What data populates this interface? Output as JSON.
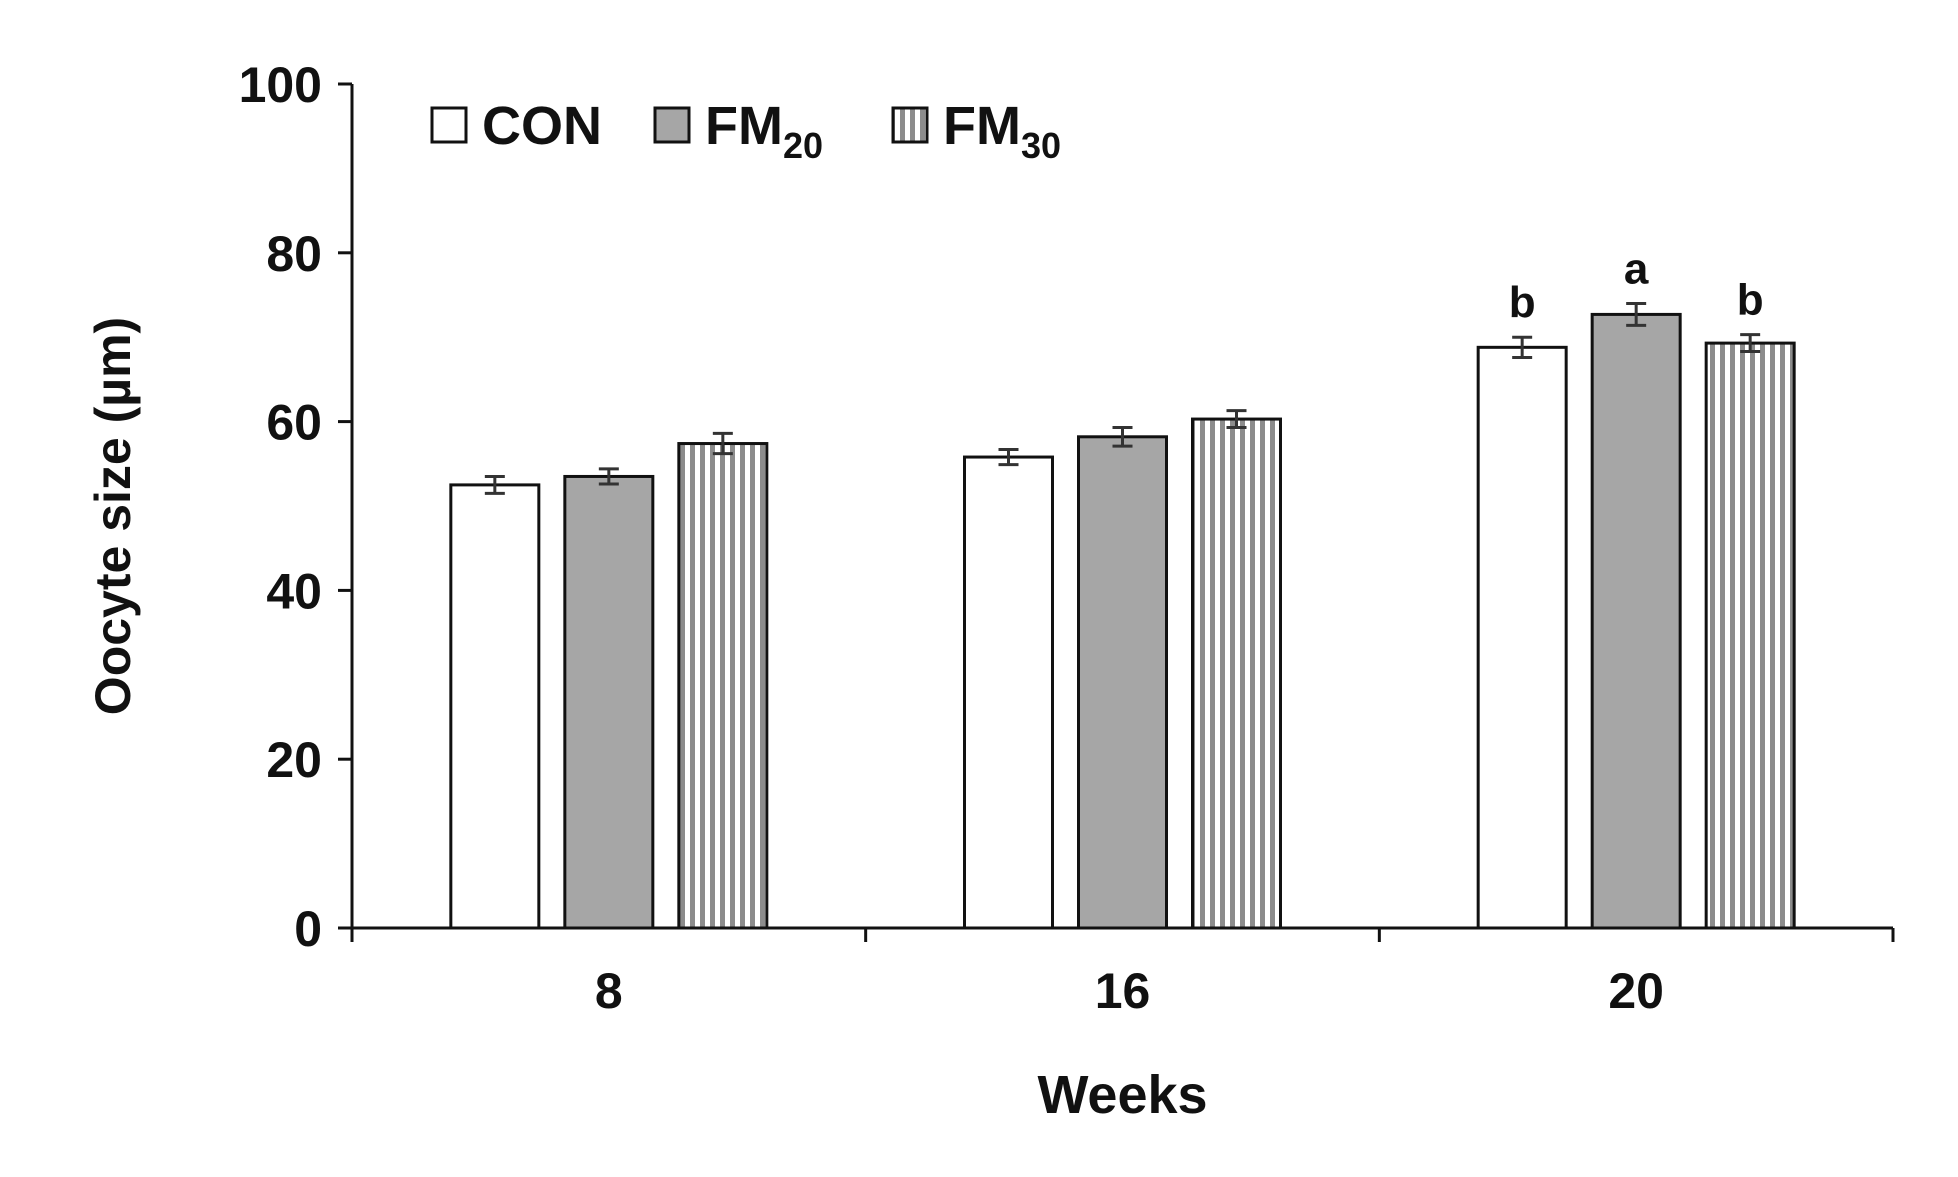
{
  "chart_data": {
    "type": "bar",
    "xlabel": "Weeks",
    "ylabel": "Oocyte size (µm)",
    "ylim": [
      0,
      100
    ],
    "yticks": [
      0,
      20,
      40,
      60,
      80,
      100
    ],
    "categories": [
      "8",
      "16",
      "20"
    ],
    "legend_position": "top-left",
    "series": [
      {
        "name": "CON",
        "name_base": "CON",
        "name_sub": "",
        "pattern": "white",
        "color": "#ffffff",
        "values": [
          52.5,
          55.8,
          68.8
        ],
        "errors": [
          1.0,
          0.9,
          1.2
        ],
        "labels": [
          "",
          "",
          "b"
        ]
      },
      {
        "name": "FM20",
        "name_base": "FM",
        "name_sub": "20",
        "pattern": "gray",
        "color": "#a6a6a6",
        "values": [
          53.5,
          58.2,
          72.7
        ],
        "errors": [
          0.9,
          1.1,
          1.3
        ],
        "labels": [
          "",
          "",
          "a"
        ]
      },
      {
        "name": "FM30",
        "name_base": "FM",
        "name_sub": "30",
        "pattern": "vertical-stripes",
        "color": "#8c8c8c",
        "values": [
          57.4,
          60.3,
          69.3
        ],
        "errors": [
          1.2,
          1.0,
          1.0
        ],
        "labels": [
          "",
          "",
          "b"
        ]
      }
    ]
  }
}
